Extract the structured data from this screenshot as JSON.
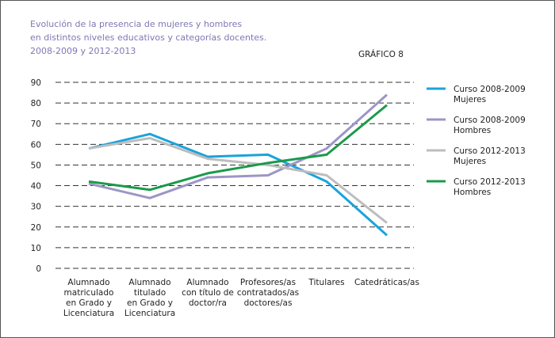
{
  "chart_data": {
    "type": "line",
    "title": [
      "Evolución de la presencia de mujeres y hombres",
      "en distintos niveles educativos y categorías docentes.",
      "2008-2009 y 2012-2013"
    ],
    "label": "GRÁFICO 8",
    "categories": [
      [
        "Alumnado",
        "matriculado",
        "en Grado y",
        "Licenciatura"
      ],
      [
        "Alumnado",
        "titulado",
        "en Grado y",
        "Licenciatura"
      ],
      [
        "Alumnado",
        "con título de",
        "doctor/ra"
      ],
      [
        "Profesores/as",
        "contratados/as",
        "doctores/as"
      ],
      [
        "Titulares"
      ],
      [
        "Catedráticas/as"
      ]
    ],
    "series": [
      {
        "name": [
          "Curso 2008-2009",
          "Mujeres"
        ],
        "color": "#1aa3dc",
        "values": [
          58,
          65,
          54,
          55,
          42,
          16
        ]
      },
      {
        "name": [
          "Curso 2008-2009",
          "Hombres"
        ],
        "color": "#9b96c6",
        "values": [
          41,
          34,
          44,
          45,
          58,
          84
        ]
      },
      {
        "name": [
          "Curso 2012-2013",
          "Mujeres"
        ],
        "color": "#bdbdbd",
        "values": [
          58,
          63,
          53,
          50,
          45,
          22
        ]
      },
      {
        "name": [
          "Curso 2012-2013",
          "Hombres"
        ],
        "color": "#1a9a4a",
        "values": [
          42,
          38,
          46,
          51,
          55,
          79
        ]
      }
    ],
    "ylim": [
      0,
      90
    ],
    "yticks": [
      0,
      10,
      20,
      30,
      40,
      50,
      60,
      70,
      80,
      90
    ],
    "grid": true,
    "legend": "right"
  }
}
